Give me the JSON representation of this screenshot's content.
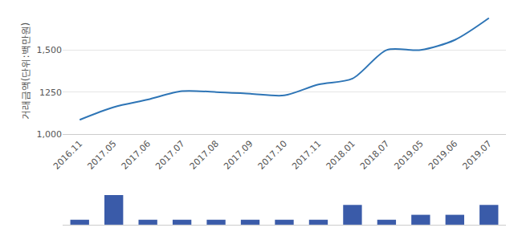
{
  "chart_data": [
    {
      "type": "line",
      "y_label": "거래금액(단위:백만원)",
      "categories": [
        "2016.11",
        "2017.05",
        "2017.06",
        "2017.07",
        "2017.08",
        "2017.09",
        "2017.10",
        "2017.11",
        "2018.01",
        "2018.07",
        "2019.05",
        "2019.06",
        "2019.07"
      ],
      "values": [
        1085,
        1160,
        1205,
        1255,
        1250,
        1240,
        1230,
        1295,
        1330,
        1500,
        1500,
        1560,
        1690
      ],
      "color": "#2e75b6",
      "ylim": [
        1000,
        1750
      ],
      "yticks": [
        {
          "value": 1000,
          "label": "1,000"
        },
        1250,
        {
          "value": 1500,
          "label": "1,500"
        }
      ],
      "grid": true
    },
    {
      "type": "bar",
      "categories": [
        "2016.11",
        "2017.05",
        "2017.06",
        "2017.07",
        "2017.08",
        "2017.09",
        "2017.10",
        "2017.11",
        "2018.01",
        "2018.07",
        "2019.05",
        "2019.06",
        "2019.07"
      ],
      "values": [
        1,
        6,
        1,
        1,
        1,
        1,
        1,
        1,
        4,
        1,
        2,
        2,
        4
      ],
      "color": "#3a5ba9",
      "ylim": [
        0,
        6.5
      ],
      "tick_labels": false
    }
  ]
}
